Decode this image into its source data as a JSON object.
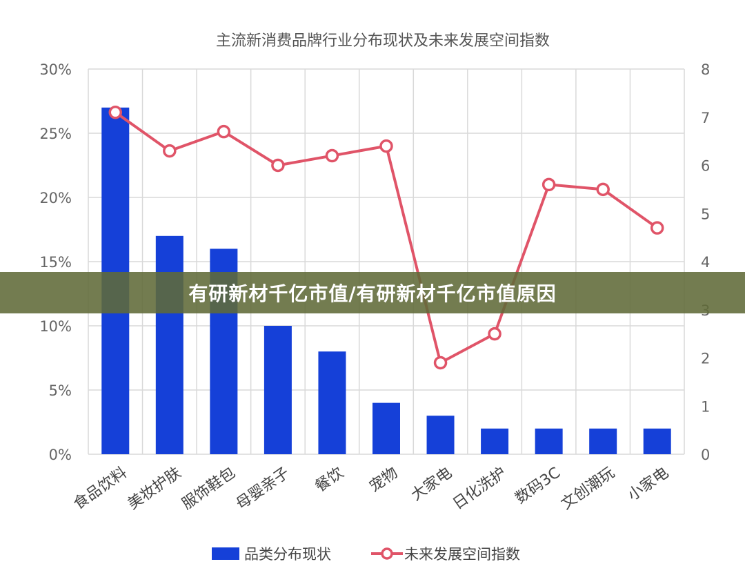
{
  "overlay": {
    "text": "有研新材千亿市值/有研新材千亿市值原因"
  },
  "colors": {
    "bar": "#1540d8",
    "line": "#e05468",
    "grid": "#d9d9d9"
  },
  "chart_data": {
    "type": "bar",
    "title": "主流新消费品牌行业分布现状及未来发展空间指数",
    "categories": [
      "食品饮料",
      "美妆护肤",
      "服饰鞋包",
      "母婴亲子",
      "餐饮",
      "宠物",
      "大家电",
      "日化洗护",
      "数码3C",
      "文创潮玩",
      "小家电"
    ],
    "series": [
      {
        "name": "品类分布现状",
        "type": "bar",
        "axis": "left",
        "values": [
          27,
          17,
          16,
          10,
          8,
          4,
          3,
          2,
          2,
          2,
          2
        ]
      },
      {
        "name": "未来发展空间指数",
        "type": "line",
        "axis": "right",
        "values": [
          7.1,
          6.3,
          6.7,
          6.0,
          6.2,
          6.4,
          1.9,
          2.5,
          5.6,
          5.5,
          4.7
        ]
      }
    ],
    "y_left": {
      "ylim": [
        0,
        30
      ],
      "ticks": [
        "0%",
        "5%",
        "10%",
        "15%",
        "20%",
        "25%",
        "30%"
      ]
    },
    "y_right": {
      "ylim": [
        0,
        8
      ],
      "ticks": [
        "0",
        "1",
        "2",
        "3",
        "4",
        "5",
        "6",
        "7",
        "8"
      ]
    },
    "grid": true,
    "legend_position": "bottom"
  }
}
